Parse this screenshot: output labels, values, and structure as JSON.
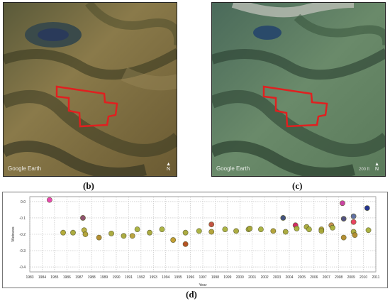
{
  "panels": {
    "b": {
      "label": "(b)",
      "watermark": "Google Earth",
      "north": "N"
    },
    "c": {
      "label": "(c)",
      "watermark": "Google Earth",
      "north": "N",
      "scale_text": "200 ft"
    },
    "d": {
      "label": "(d)"
    }
  },
  "colors": {
    "boundary": "#e02020"
  },
  "chart_data": {
    "type": "scatter",
    "xlabel": "Year",
    "ylabel": "Wetness",
    "xlim": [
      1983,
      2011
    ],
    "ylim": [
      -0.43,
      0.03
    ],
    "xticks": [
      "1983",
      "1984",
      "1985",
      "1986",
      "1987",
      "1988",
      "1989",
      "1990",
      "1991",
      "1992",
      "1993",
      "1994",
      "1995",
      "1996",
      "1997",
      "1998",
      "1999",
      "2000",
      "2001",
      "2002",
      "2003",
      "2004",
      "2005",
      "2006",
      "2007",
      "2008",
      "2009",
      "2010",
      "2011"
    ],
    "yticks": [
      "0.0",
      "-0.1",
      "-0.2",
      "-0.3",
      "-0.4"
    ],
    "yticks_values": [
      0,
      -0.1,
      -0.2,
      -0.3,
      -0.4
    ],
    "grid": true,
    "points": [
      {
        "x": 1984.6,
        "y": 0.01,
        "color": "#e83fb0"
      },
      {
        "x": 1985.7,
        "y": -0.19,
        "color": "#b0a832"
      },
      {
        "x": 1986.5,
        "y": -0.19,
        "color": "#a8a838"
      },
      {
        "x": 1987.3,
        "y": -0.1,
        "color": "#8a4a6a"
      },
      {
        "x": 1987.4,
        "y": -0.175,
        "color": "#b4aa3a"
      },
      {
        "x": 1987.5,
        "y": -0.2,
        "color": "#b0a032"
      },
      {
        "x": 1988.6,
        "y": -0.22,
        "color": "#b08a2a"
      },
      {
        "x": 1989.6,
        "y": -0.195,
        "color": "#a8a838"
      },
      {
        "x": 1990.6,
        "y": -0.21,
        "color": "#a8a838"
      },
      {
        "x": 1991.3,
        "y": -0.21,
        "color": "#b8a038"
      },
      {
        "x": 1991.7,
        "y": -0.17,
        "color": "#a8b03a"
      },
      {
        "x": 1992.7,
        "y": -0.19,
        "color": "#a8a838"
      },
      {
        "x": 1993.7,
        "y": -0.17,
        "color": "#a8b03a"
      },
      {
        "x": 1994.6,
        "y": -0.235,
        "color": "#c09a2a"
      },
      {
        "x": 1995.6,
        "y": -0.26,
        "color": "#b44a1a"
      },
      {
        "x": 1995.6,
        "y": -0.19,
        "color": "#a8a838"
      },
      {
        "x": 1996.7,
        "y": -0.18,
        "color": "#a8b03a"
      },
      {
        "x": 1997.7,
        "y": -0.14,
        "color": "#c04a3a"
      },
      {
        "x": 1997.7,
        "y": -0.185,
        "color": "#b0a032"
      },
      {
        "x": 1998.8,
        "y": -0.17,
        "color": "#a8b03a"
      },
      {
        "x": 1999.7,
        "y": -0.18,
        "color": "#a8a838"
      },
      {
        "x": 2000.7,
        "y": -0.17,
        "color": "#a8b03a"
      },
      {
        "x": 2000.8,
        "y": -0.165,
        "color": "#a8a838"
      },
      {
        "x": 2001.7,
        "y": -0.17,
        "color": "#a8b03a"
      },
      {
        "x": 2002.7,
        "y": -0.18,
        "color": "#b0a032"
      },
      {
        "x": 2003.5,
        "y": -0.1,
        "color": "#3a4a7a"
      },
      {
        "x": 2003.7,
        "y": -0.185,
        "color": "#a8a838"
      },
      {
        "x": 2004.5,
        "y": -0.145,
        "color": "#d02060"
      },
      {
        "x": 2004.6,
        "y": -0.165,
        "color": "#a8b03a"
      },
      {
        "x": 2005.4,
        "y": -0.155,
        "color": "#a8a838"
      },
      {
        "x": 2005.6,
        "y": -0.17,
        "color": "#a8b03a"
      },
      {
        "x": 2006.6,
        "y": -0.17,
        "color": "#b0a032"
      },
      {
        "x": 2006.6,
        "y": -0.18,
        "color": "#a8a838"
      },
      {
        "x": 2007.4,
        "y": -0.145,
        "color": "#c08a4a"
      },
      {
        "x": 2007.5,
        "y": -0.16,
        "color": "#a8b03a"
      },
      {
        "x": 2008.3,
        "y": -0.01,
        "color": "#c83aa0"
      },
      {
        "x": 2008.4,
        "y": -0.105,
        "color": "#4a4a7a"
      },
      {
        "x": 2008.4,
        "y": -0.22,
        "color": "#b08a2a"
      },
      {
        "x": 2009.2,
        "y": -0.09,
        "color": "#5a6aa0"
      },
      {
        "x": 2009.2,
        "y": -0.125,
        "color": "#e83a5a"
      },
      {
        "x": 2009.2,
        "y": -0.185,
        "color": "#a8a838"
      },
      {
        "x": 2009.3,
        "y": -0.205,
        "color": "#b08a2a"
      },
      {
        "x": 2010.3,
        "y": -0.04,
        "color": "#1a2a8a"
      },
      {
        "x": 2010.4,
        "y": -0.175,
        "color": "#a8b03a"
      }
    ]
  }
}
